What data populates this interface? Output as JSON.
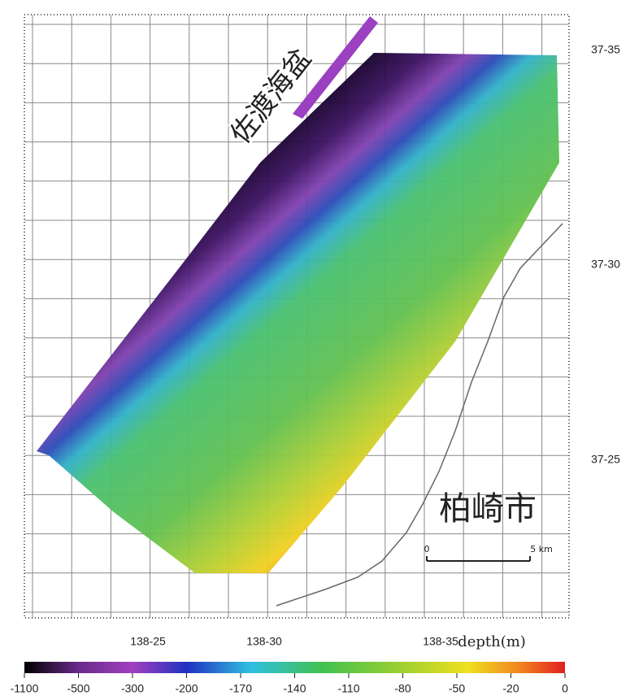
{
  "map": {
    "basin_label": "佐渡海盆",
    "city_label": "柏崎市",
    "lat_labels": [
      "37-35",
      "37-30",
      "37-25"
    ],
    "lon_labels": [
      "138-25",
      "138-30",
      "138-35"
    ],
    "scale_bar": {
      "start": "0",
      "end": "5 km"
    },
    "colorbar": {
      "title": "depth(m)",
      "ticks": [
        -1100,
        -500,
        -300,
        -200,
        -170,
        -140,
        -110,
        -80,
        -50,
        -20,
        0
      ]
    }
  }
}
